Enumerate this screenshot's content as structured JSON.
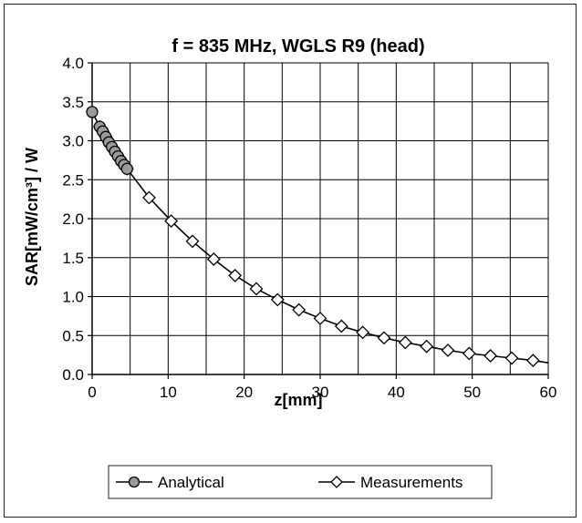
{
  "chart_data": {
    "type": "line",
    "title": "f = 835 MHz, WGLS R9 (head)",
    "xlabel": "z[mm]",
    "ylabel": "SAR[mW/cm³] / W",
    "xlim": [
      0,
      60
    ],
    "ylim": [
      0,
      4.0
    ],
    "x_ticks": [
      "0",
      "10",
      "20",
      "30",
      "40",
      "50",
      "60"
    ],
    "y_ticks": [
      "0.0",
      "0.5",
      "1.0",
      "1.5",
      "2.0",
      "2.5",
      "3.0",
      "3.5",
      "4.0"
    ],
    "grid": true,
    "legend_position": "bottom",
    "series": [
      {
        "name": "Analytical",
        "marker": "circle",
        "color": "#000000",
        "x": [
          0,
          60
        ],
        "y": [
          3.37,
          0.15
        ]
      },
      {
        "name": "Measurements",
        "marker": "diamond",
        "color": "#000000",
        "x": [
          1.0,
          1.4,
          1.8,
          2.2,
          2.6,
          3.0,
          3.4,
          3.8,
          4.2,
          4.6,
          7.5,
          10.4,
          13.2,
          16.0,
          18.8,
          21.6,
          24.4,
          27.2,
          30.0,
          32.8,
          35.6,
          38.4,
          41.2,
          44.0,
          46.8,
          49.6,
          52.4,
          55.2,
          58.0
        ],
        "y": [
          3.18,
          3.12,
          3.05,
          2.98,
          2.92,
          2.86,
          2.8,
          2.74,
          2.69,
          2.64,
          2.27,
          1.97,
          1.71,
          1.48,
          1.27,
          1.1,
          0.96,
          0.83,
          0.72,
          0.62,
          0.54,
          0.47,
          0.41,
          0.36,
          0.31,
          0.27,
          0.24,
          0.21,
          0.18
        ]
      }
    ],
    "analytical_circle_x": [
      0,
      1.0,
      1.4,
      1.8,
      2.2,
      2.6,
      3.0,
      3.4,
      3.8,
      4.2,
      4.6
    ]
  }
}
